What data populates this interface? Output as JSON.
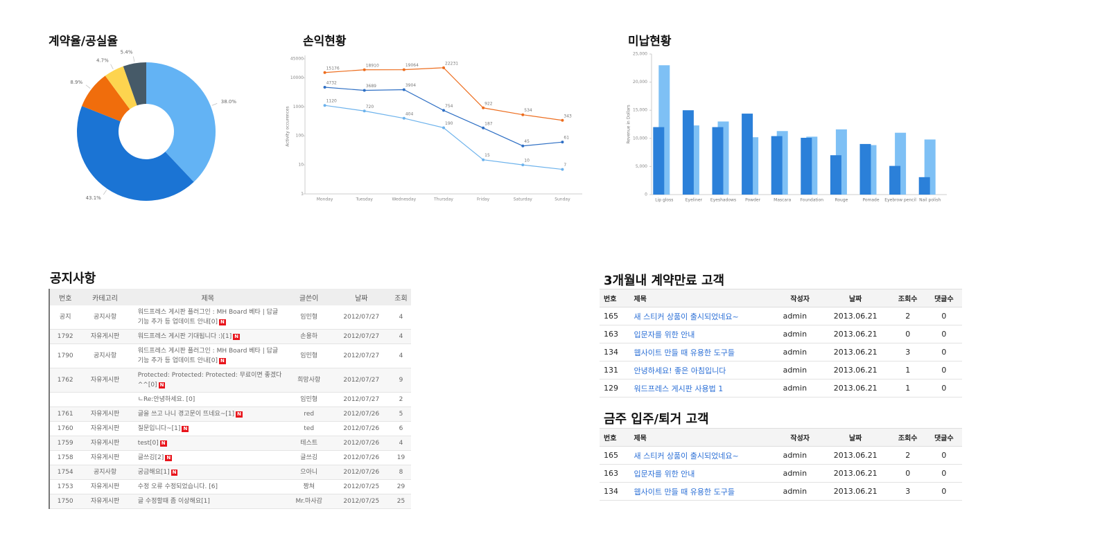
{
  "chart_data": [
    {
      "type": "pie",
      "title": "계약율/공실율",
      "donut": true,
      "values": [
        38.0,
        43.1,
        8.9,
        4.7,
        5.4
      ],
      "value_labels": [
        "38.0%",
        "43.1%",
        "8.9%",
        "4.7%",
        "5.4%"
      ],
      "colors": [
        "#63b3f4",
        "#1b74d4",
        "#f06d0c",
        "#fdd44f",
        "#465a68"
      ]
    },
    {
      "type": "line",
      "title": "손익현황",
      "y_label": "Activity occurences",
      "yscale": "log",
      "categories": [
        "Monday",
        "Tuesday",
        "Wednesday",
        "Thursday",
        "Friday",
        "Saturday",
        "Sunday"
      ],
      "series": [
        {
          "color": "#ed6d1e",
          "values": [
            15176,
            18910,
            19064,
            22231,
            922,
            534,
            343
          ]
        },
        {
          "color": "#2e6fc4",
          "values": [
            4732,
            3689,
            3904,
            754,
            187,
            45,
            61
          ]
        },
        {
          "color": "#6cb2ec",
          "values": [
            1120,
            720,
            404,
            190,
            15,
            10,
            7
          ]
        }
      ],
      "ylim": [
        1,
        45000
      ],
      "yticks": [
        1,
        10,
        100,
        1000,
        10000,
        45000
      ],
      "grid": false
    },
    {
      "type": "bar",
      "title": "미납현황",
      "y_label": "Revenue in Dollars",
      "categories": [
        "Lip gloss",
        "Eyeliner",
        "Eyeshadows",
        "Powder",
        "Mascara",
        "Foundation",
        "Rouge",
        "Pomade",
        "Eyebrow pencil",
        "Nail polish"
      ],
      "series": [
        {
          "color": "#7ec0f5",
          "values": [
            23000,
            12300,
            13000,
            10200,
            11300,
            10300,
            11600,
            8800,
            11000,
            9800
          ]
        },
        {
          "color": "#2b80d9",
          "values": [
            12000,
            15000,
            12000,
            14400,
            10400,
            10100,
            7000,
            9000,
            5100,
            3100
          ]
        }
      ],
      "ylim": [
        0,
        25000
      ],
      "yticks": [
        0,
        {
          "value": 5000,
          "label": "5,000"
        },
        {
          "value": 10000,
          "label": "10,000"
        },
        {
          "value": 15000,
          "label": "15,000"
        },
        {
          "value": 20000,
          "label": "20,000"
        },
        {
          "value": 25000,
          "label": "25,000"
        }
      ],
      "grid": false
    }
  ],
  "notice": {
    "title": "공지사항",
    "columns": [
      "번호",
      "카테고리",
      "제목",
      "글쓴이",
      "날짜",
      "조회"
    ],
    "rows": [
      {
        "cells": [
          "공지",
          "공지사항",
          "워드프레스 게시판 플러그인 : MH Board 베타 | 답글 기능 추가 등 업데이트 안내[0]",
          "임민형",
          "2012/07/27",
          "4"
        ],
        "badge": "N"
      },
      {
        "cells": [
          "1792",
          "자유게시판",
          "워드프레스 게시판 기대됩니다 :)[1]",
          "손용하",
          "2012/07/27",
          "4"
        ],
        "badge": "N"
      },
      {
        "cells": [
          "1790",
          "공지사항",
          "워드프레스 게시판 플러그인 : MH Board 베타 | 답글 기능 추가 등 업데이트 안내[0]",
          "임민형",
          "2012/07/27",
          "4"
        ],
        "badge": "N"
      },
      {
        "cells": [
          "1762",
          "자유게시판",
          "Protected: Protected: Protected: 무료이면 좋겠다^^[0]",
          "희망사항",
          "2012/07/27",
          "9"
        ],
        "badge": "N"
      },
      {
        "cells": [
          null,
          null,
          "ㄴRe:안녕하세요. [0]",
          "임민형",
          "2012/07/27",
          "2"
        ]
      },
      {
        "cells": [
          "1761",
          "자유게시판",
          "글을 쓰고 나니 경고문이 뜨네요~[1]",
          "red",
          "2012/07/26",
          "5"
        ],
        "badge": "N"
      },
      {
        "cells": [
          "1760",
          "자유게시판",
          "질문입니다~[1]",
          "ted",
          "2012/07/26",
          "6"
        ],
        "badge": "N"
      },
      {
        "cells": [
          "1759",
          "자유게시판",
          "test[0]",
          "테스트",
          "2012/07/26",
          "4"
        ],
        "badge": "N"
      },
      {
        "cells": [
          "1758",
          "자유게시판",
          "글쓰깅[2]",
          "글쓰깅",
          "2012/07/26",
          "19"
        ],
        "badge": "N"
      },
      {
        "cells": [
          "1754",
          "공지사항",
          "궁금해요[1]",
          "으아니",
          "2012/07/26",
          "8"
        ],
        "badge": "N"
      },
      {
        "cells": [
          "1753",
          "자유게시판",
          "수정 오류 수정되었습니다. [6]",
          "짱쳐",
          "2012/07/25",
          "29"
        ]
      },
      {
        "cells": [
          "1750",
          "자유게시판",
          "글 수정할때 좀 이상해요[1]",
          "Mr.마사감",
          "2012/07/25",
          "25"
        ]
      }
    ]
  },
  "expiring": {
    "title": "3개월내 계약만료 고객",
    "columns": [
      "번호",
      "제목",
      "작성자",
      "날짜",
      "조회수",
      "댓글수"
    ],
    "rows": [
      [
        "165",
        "새 스티커 상품이 출시되었네요~",
        "admin",
        "2013.06.21",
        "2",
        "0"
      ],
      [
        "163",
        "입문자를 위한 안내",
        "admin",
        "2013.06.21",
        "0",
        "0"
      ],
      [
        "134",
        "웹사이트 만들 때 유용한 도구들",
        "admin",
        "2013.06.21",
        "3",
        "0"
      ],
      [
        "131",
        "안녕하세요! 좋은 아침입니다",
        "admin",
        "2013.06.21",
        "1",
        "0"
      ],
      [
        "129",
        "워드프레스 게시판 사용법 1",
        "admin",
        "2013.06.21",
        "1",
        "0"
      ]
    ]
  },
  "moves": {
    "title": "금주 입주/퇴거 고객",
    "columns": [
      "번호",
      "제목",
      "작성자",
      "날짜",
      "조회수",
      "댓글수"
    ],
    "rows": [
      [
        "165",
        "새 스티커 상품이 출시되었네요~",
        "admin",
        "2013.06.21",
        "2",
        "0"
      ],
      [
        "163",
        "입문자를 위한 안내",
        "admin",
        "2013.06.21",
        "0",
        "0"
      ],
      [
        "134",
        "웹사이트 만들 때 유용한 도구들",
        "admin",
        "2013.06.21",
        "3",
        "0"
      ]
    ]
  }
}
